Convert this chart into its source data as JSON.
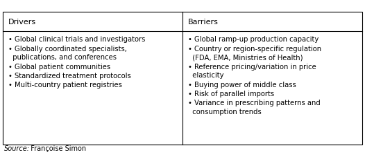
{
  "title_left": "Drivers",
  "title_right": "Barriers",
  "drivers": [
    [
      "Global clinical trials and investigators"
    ],
    [
      "Globally coordinated specialists,",
      "  publications, and conferences"
    ],
    [
      "Global patient communities"
    ],
    [
      "Standardized treatment protocols"
    ],
    [
      "Multi-country patient registries"
    ]
  ],
  "barriers": [
    [
      "Global ramp-up production capacity"
    ],
    [
      "Country or region-specific regulation",
      "  (FDA, EMA, Ministries of Health)"
    ],
    [
      "Reference pricing/variation in price",
      "  elasticity"
    ],
    [
      "Buying power of middle class"
    ],
    [
      "Risk of parallel imports"
    ],
    [
      "Variance in prescribing patterns and",
      "  consumption trends"
    ]
  ],
  "source_label": "Source:",
  "source_text": "  Françoise Simon",
  "bg_color": "#ffffff",
  "border_color": "#000000",
  "text_color": "#000000",
  "header_fontsize": 8.0,
  "body_fontsize": 7.2,
  "source_fontsize": 7.0,
  "bullet": "•"
}
